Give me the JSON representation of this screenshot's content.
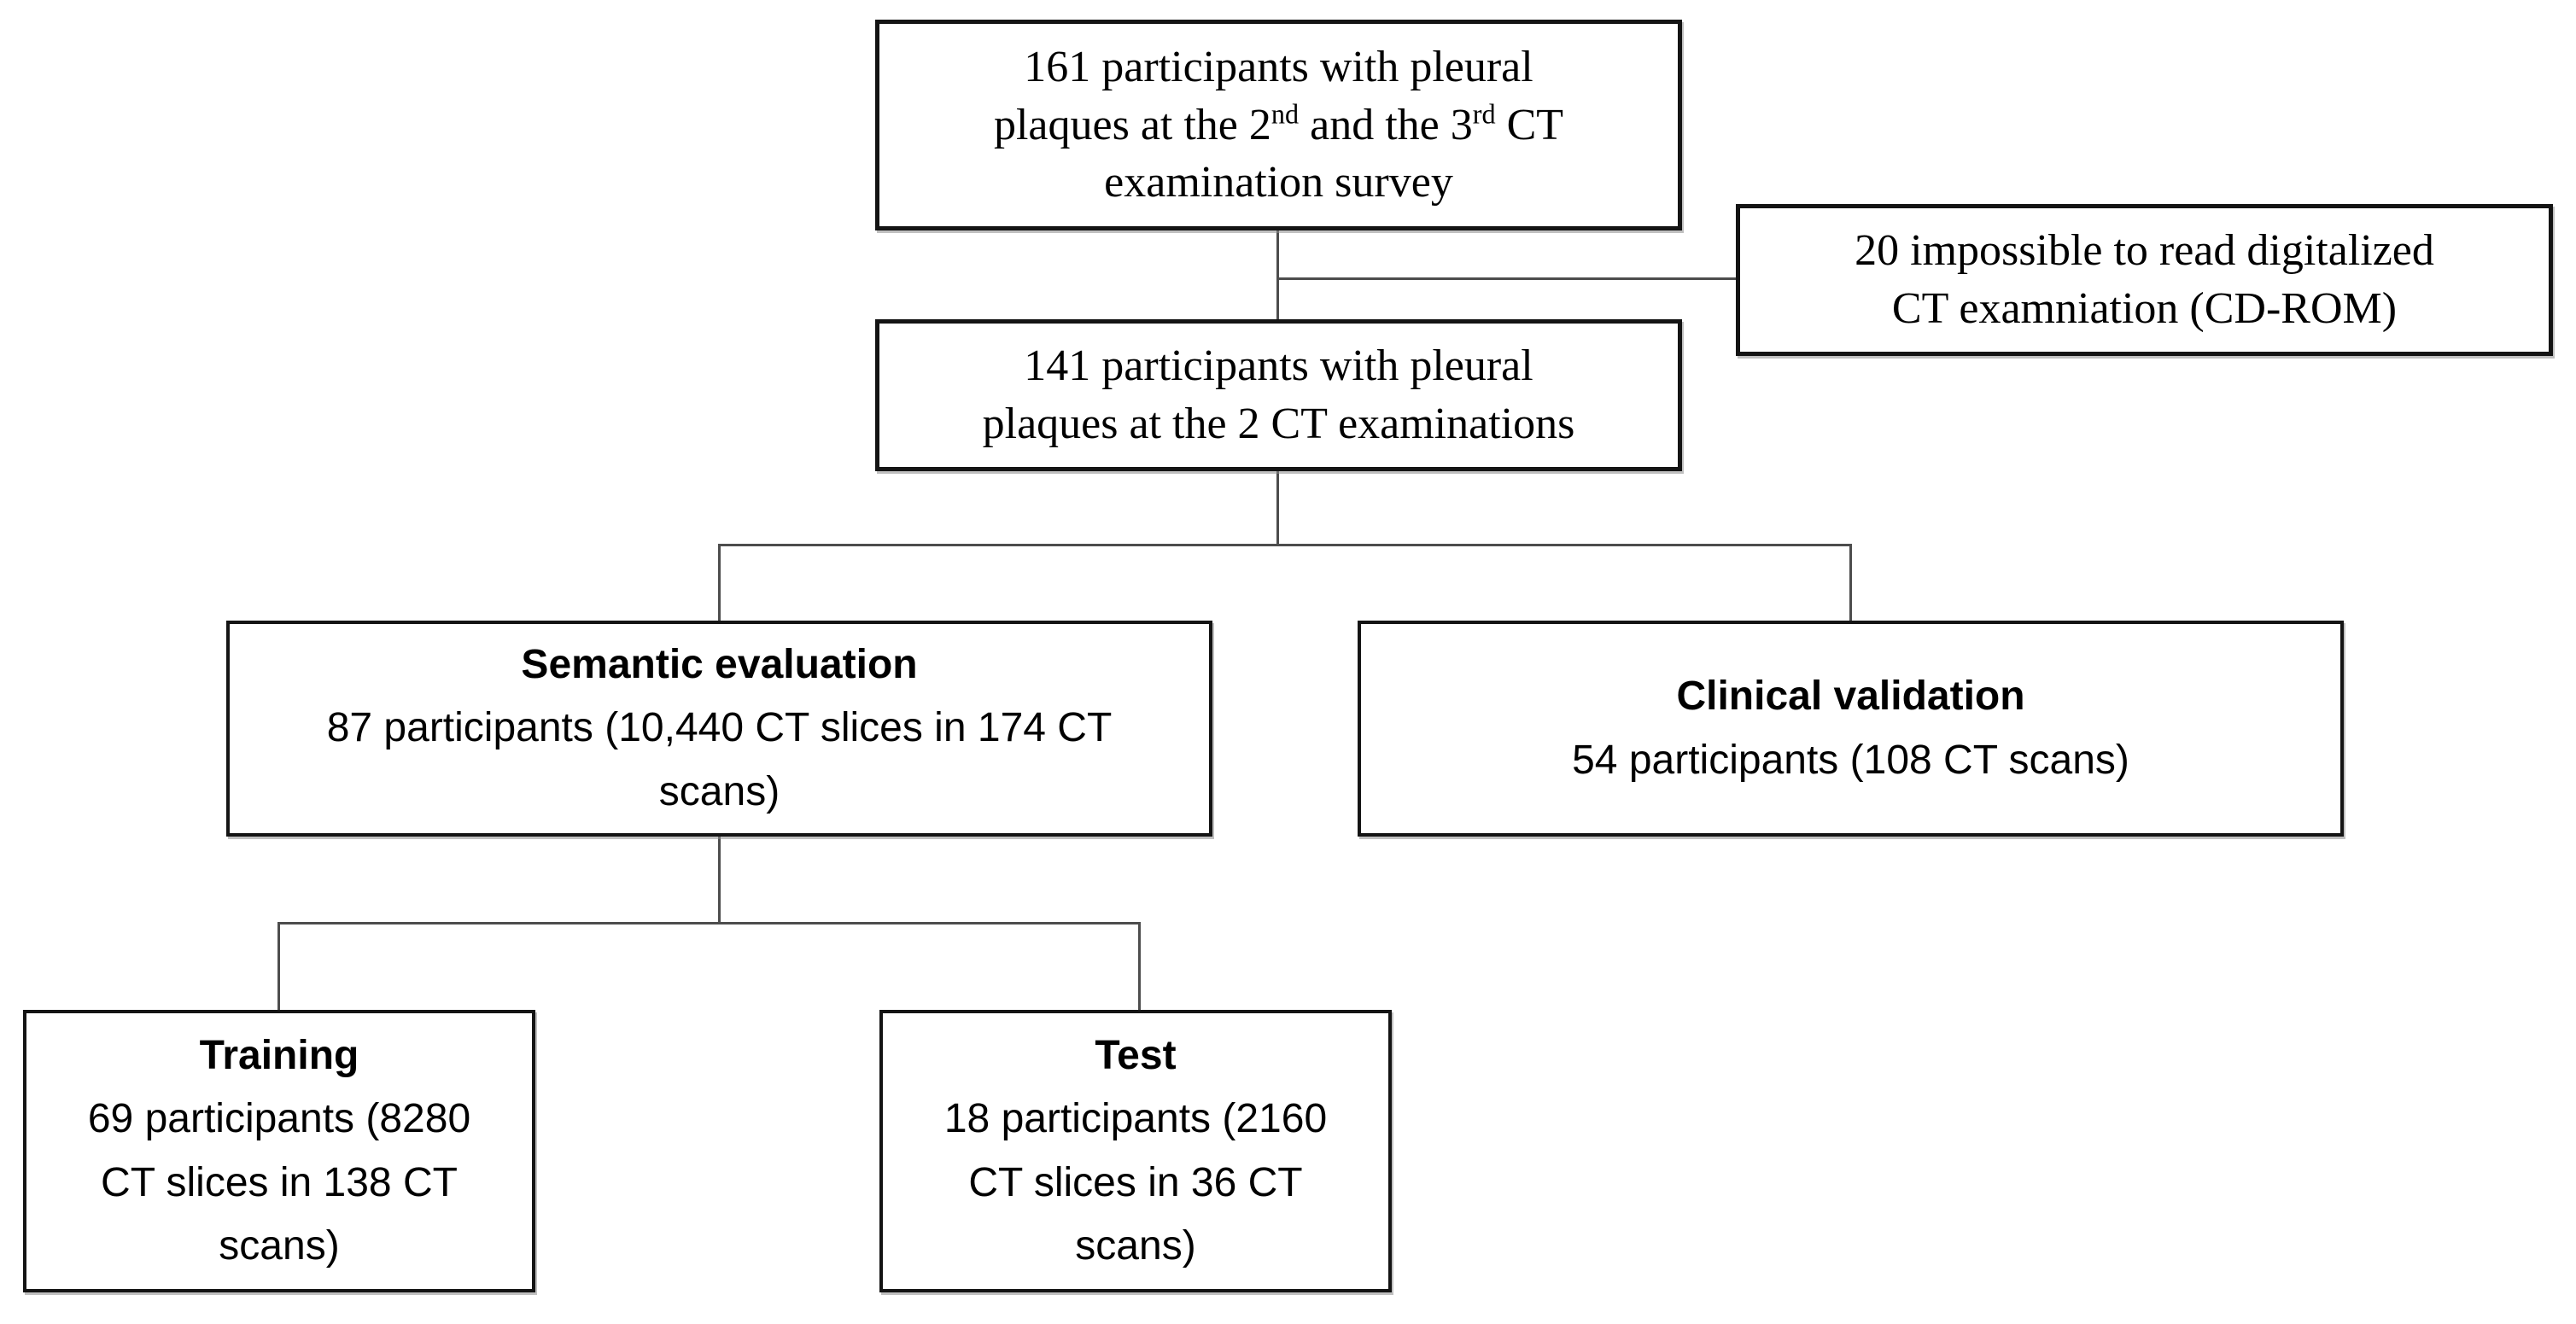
{
  "diagram": {
    "type": "participant-flowchart",
    "colors": {
      "background": "#ffffff",
      "box_border": "#141414",
      "connector": "#4d4d4d",
      "text": "#000000"
    },
    "initial_box": {
      "line1": "161 participants with pleural",
      "line2_a": "plaques at the 2",
      "line2_sup1": "nd",
      "line2_b": " and the 3",
      "line2_sup2": "rd",
      "line2_c": " CT",
      "line3": "examination survey"
    },
    "excluded_box": {
      "line1": "20 impossible to read digitalized",
      "line2": "CT examniation (CD-ROM)"
    },
    "included_box": {
      "line1": "141 participants with pleural",
      "line2": "plaques at the 2 CT examinations"
    },
    "semantic_box": {
      "title": "Semantic evaluation",
      "body": "87 participants (10,440 CT slices in 174 CT\nscans)"
    },
    "clinical_box": {
      "title": "Clinical validation",
      "body": "54 participants (108 CT scans)"
    },
    "training_box": {
      "title": "Training",
      "body": "69 participants (8280\nCT slices in 138 CT\nscans)"
    },
    "test_box": {
      "title": "Test",
      "body": "18 participants (2160\nCT slices in 36 CT\nscans)"
    }
  }
}
